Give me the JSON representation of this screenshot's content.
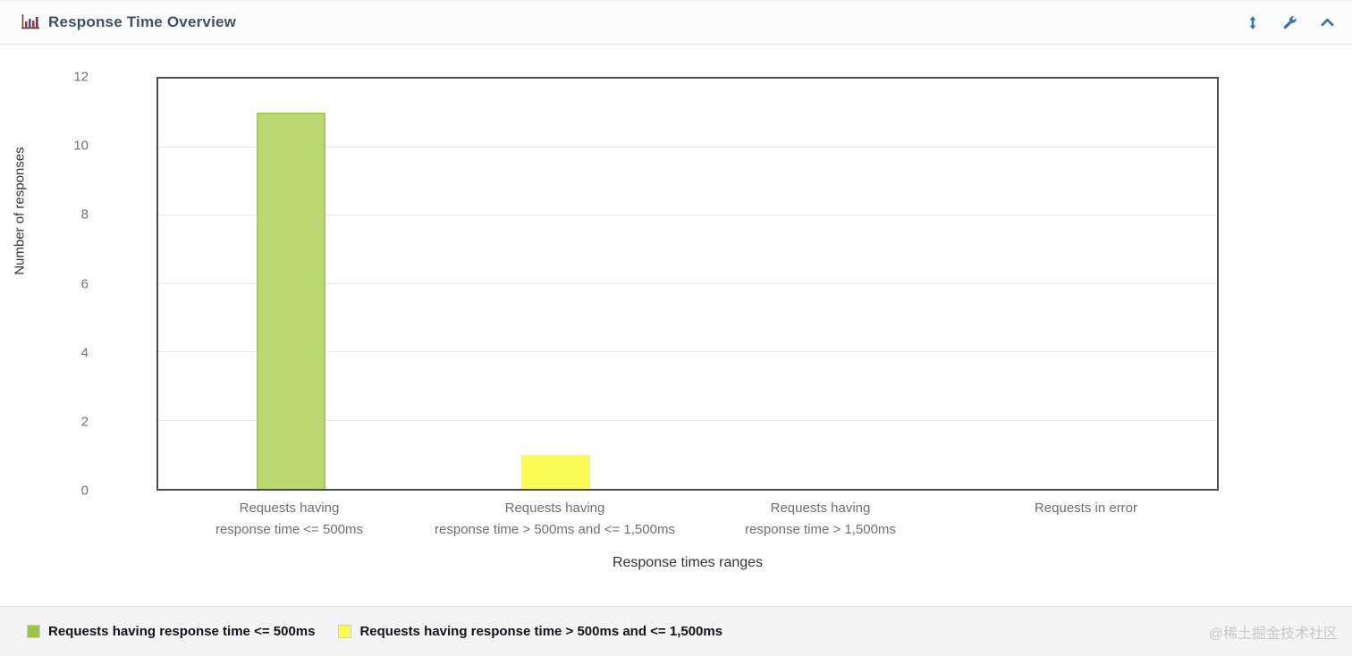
{
  "header": {
    "title": "Response Time Overview",
    "accent_color": "#3e73a8",
    "title_color": "#3f5265",
    "action_icons": [
      "resize-vertical-icon",
      "settings-wrench-icon",
      "collapse-chevron-up-icon"
    ]
  },
  "chart_data": {
    "type": "bar",
    "title": "Response Time Overview",
    "xlabel": "Response times ranges",
    "ylabel": "Number of responses",
    "ylim": [
      0,
      12
    ],
    "yticks": [
      0,
      2,
      4,
      6,
      8,
      10,
      12
    ],
    "grid": "horizontal",
    "legend_position": "bottom",
    "categories": [
      "Requests having\nresponse time <= 500ms",
      "Requests having\nresponse time > 500ms and <= 1,500ms",
      "Requests having\nresponse time > 1,500ms",
      "Requests in error"
    ],
    "values": [
      11,
      1,
      0,
      0
    ],
    "bar_fill_colors": [
      "#bbd873",
      "#fbfb58",
      null,
      null
    ],
    "bar_border_colors": [
      "#a3cd4e",
      "#fbfb58",
      null,
      null
    ],
    "grid_color": "#e6e6e6",
    "plot_border_color": "#4d4d4d"
  },
  "legend": {
    "items": [
      {
        "label": "Requests having response time <= 500ms",
        "color": "#9ac642"
      },
      {
        "label": "Requests having response time > 500ms and <= 1,500ms",
        "color": "#fafa50"
      }
    ]
  },
  "watermark": {
    "text": "@稀土掘金技术社区"
  }
}
